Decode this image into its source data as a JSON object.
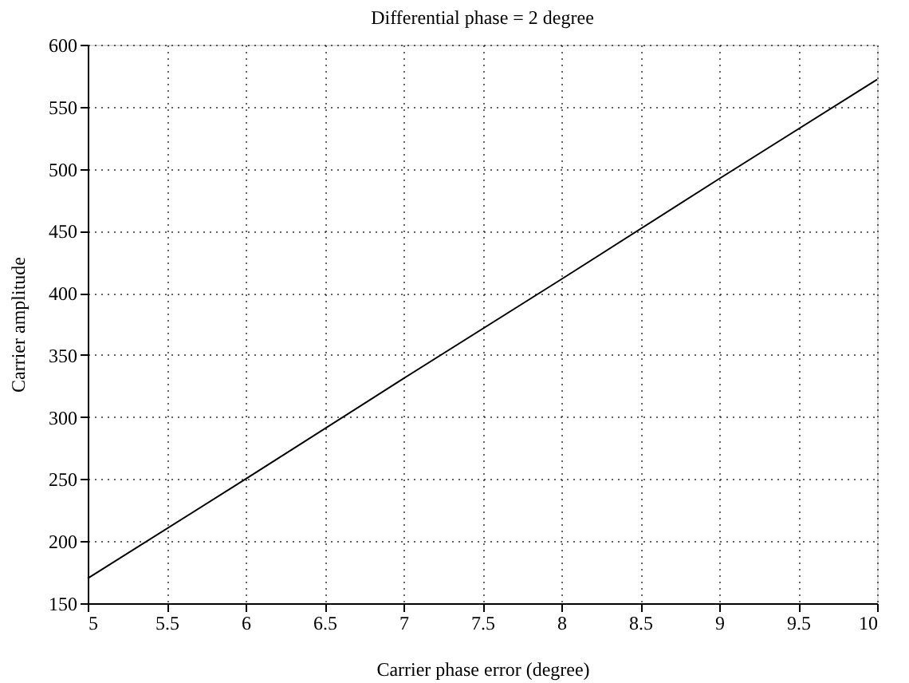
{
  "chart_data": {
    "type": "line",
    "title": "Differential phase = 2 degree",
    "xlabel": "Carrier phase error (degree)",
    "ylabel": "Carrier amplitude",
    "x": [
      5,
      6,
      7,
      8,
      9,
      10
    ],
    "series": [
      {
        "color": "#000000",
        "values": [
          170,
          250,
          331,
          411,
          492,
          572
        ]
      }
    ],
    "xlim": [
      5,
      10
    ],
    "xticks": [
      5,
      5.5,
      6,
      6.5,
      7,
      7.5,
      8,
      8.5,
      9,
      9.5,
      10
    ],
    "ylim": [
      150,
      600
    ],
    "yticks": [
      150,
      200,
      250,
      300,
      350,
      400,
      450,
      500,
      550,
      600
    ],
    "grid": true,
    "marker": "none",
    "line_style": "solid"
  }
}
